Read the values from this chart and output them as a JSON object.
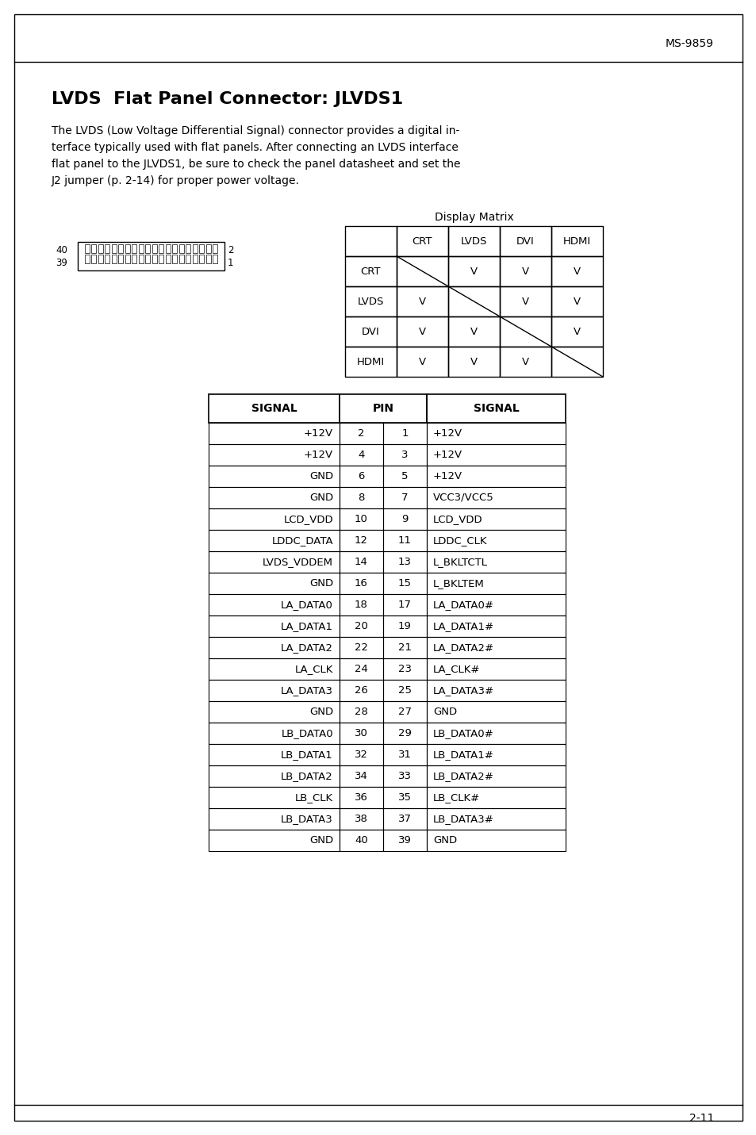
{
  "page_header": "MS-9859",
  "page_footer": "2-11",
  "title": "LVDS  Flat Panel Connector: JLVDS1",
  "body_lines": [
    "The LVDS (Low Voltage Differential Signal) connector provides a digital in-",
    "terface typically used with flat panels. After connecting an LVDS interface",
    "flat panel to the JLVDS1, be sure to check the panel datasheet and set the",
    "J2 jumper (p. 2-14) for proper power voltage."
  ],
  "display_matrix_title": "Display Matrix",
  "display_matrix_headers": [
    "",
    "CRT",
    "LVDS",
    "DVI",
    "HDMI"
  ],
  "display_matrix_rows": [
    [
      "CRT",
      "",
      "V",
      "V",
      "V"
    ],
    [
      "LVDS",
      "V",
      "",
      "V",
      "V"
    ],
    [
      "DVI",
      "V",
      "V",
      "",
      "V"
    ],
    [
      "HDMI",
      "V",
      "V",
      "V",
      ""
    ]
  ],
  "pin_table_rows": [
    [
      "+12V",
      "2",
      "1",
      "+12V"
    ],
    [
      "+12V",
      "4",
      "3",
      "+12V"
    ],
    [
      "GND",
      "6",
      "5",
      "+12V"
    ],
    [
      "GND",
      "8",
      "7",
      "VCC3/VCC5"
    ],
    [
      "LCD_VDD",
      "10",
      "9",
      "LCD_VDD"
    ],
    [
      "LDDC_DATA",
      "12",
      "11",
      "LDDC_CLK"
    ],
    [
      "LVDS_VDDEM",
      "14",
      "13",
      "L_BKLTCTL"
    ],
    [
      "GND",
      "16",
      "15",
      "L_BKLTEM"
    ],
    [
      "LA_DATA0",
      "18",
      "17",
      "LA_DATA0#"
    ],
    [
      "LA_DATA1",
      "20",
      "19",
      "LA_DATA1#"
    ],
    [
      "LA_DATA2",
      "22",
      "21",
      "LA_DATA2#"
    ],
    [
      "LA_CLK",
      "24",
      "23",
      "LA_CLK#"
    ],
    [
      "LA_DATA3",
      "26",
      "25",
      "LA_DATA3#"
    ],
    [
      "GND",
      "28",
      "27",
      "GND"
    ],
    [
      "LB_DATA0",
      "30",
      "29",
      "LB_DATA0#"
    ],
    [
      "LB_DATA1",
      "32",
      "31",
      "LB_DATA1#"
    ],
    [
      "LB_DATA2",
      "34",
      "33",
      "LB_DATA2#"
    ],
    [
      "LB_CLK",
      "36",
      "35",
      "LB_CLK#"
    ],
    [
      "LB_DATA3",
      "38",
      "37",
      "LB_DATA3#"
    ],
    [
      "GND",
      "40",
      "39",
      "GND"
    ]
  ],
  "bg_color": "#ffffff",
  "text_color": "#000000"
}
